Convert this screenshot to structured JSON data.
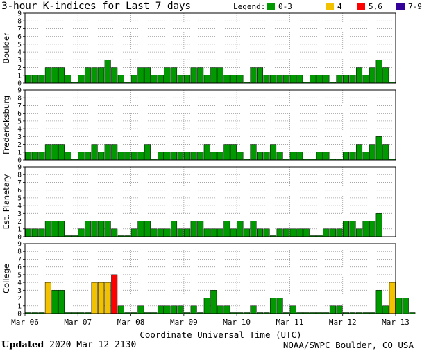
{
  "chart_data": {
    "type": "bar",
    "title": "3-hour K-indices for Last 7 days",
    "legend_label": "Legend:",
    "legend_placement": "top-right",
    "legend": [
      {
        "label": "0-3",
        "color": "#009900"
      },
      {
        "label": "4",
        "color": "#f2c200"
      },
      {
        "label": "5,6",
        "color": "#ff0000"
      },
      {
        "label": "7-9",
        "color": "#330099"
      }
    ],
    "ylim": [
      0,
      9
    ],
    "yticks": [
      "0",
      "1",
      "2",
      "3",
      "4",
      "5",
      "6",
      "7",
      "8",
      "9"
    ],
    "grid": true,
    "xlabel": "Coordinate Universal Time (UTC)",
    "xticks": [
      "Mar 06",
      "Mar 07",
      "Mar 08",
      "Mar 09",
      "Mar 10",
      "Mar 11",
      "Mar 12",
      "Mar 13"
    ],
    "intervals_per_day": 8,
    "panels": [
      {
        "name": "Boulder",
        "values": [
          1,
          1,
          1,
          2,
          2,
          2,
          1,
          0,
          1,
          2,
          2,
          2,
          3,
          2,
          1,
          0,
          1,
          2,
          2,
          1,
          1,
          2,
          2,
          1,
          1,
          2,
          2,
          1,
          2,
          2,
          1,
          1,
          1,
          0,
          2,
          2,
          1,
          1,
          1,
          1,
          1,
          1,
          0,
          1,
          1,
          1,
          0,
          1,
          1,
          1,
          2,
          1,
          2,
          3,
          2,
          0
        ]
      },
      {
        "name": "Fredericksburg",
        "values": [
          1,
          1,
          1,
          2,
          2,
          2,
          1,
          0,
          1,
          1,
          2,
          1,
          2,
          2,
          1,
          1,
          1,
          1,
          2,
          0,
          1,
          1,
          1,
          1,
          1,
          1,
          1,
          2,
          1,
          1,
          2,
          2,
          1,
          0,
          2,
          1,
          1,
          2,
          1,
          0,
          1,
          1,
          0,
          0,
          1,
          1,
          0,
          0,
          1,
          1,
          2,
          1,
          2,
          3,
          2,
          0
        ]
      },
      {
        "name": "Est. Planetary",
        "values": [
          1,
          1,
          1,
          2,
          2,
          2,
          0,
          0,
          1,
          2,
          2,
          2,
          2,
          1,
          0,
          0,
          1,
          2,
          2,
          1,
          1,
          1,
          2,
          1,
          1,
          2,
          2,
          1,
          1,
          1,
          2,
          1,
          2,
          1,
          2,
          1,
          1,
          0,
          1,
          1,
          1,
          1,
          1,
          0,
          0,
          1,
          1,
          1,
          2,
          2,
          1,
          2,
          2,
          3
        ]
      },
      {
        "name": "College",
        "values": [
          0,
          0,
          0,
          4,
          3,
          3,
          0,
          0,
          0,
          0,
          4,
          4,
          4,
          5,
          1,
          0,
          0,
          1,
          0,
          0,
          1,
          1,
          1,
          1,
          0,
          1,
          0,
          2,
          3,
          1,
          1,
          0,
          0,
          0,
          1,
          0,
          0,
          2,
          2,
          0,
          1,
          0,
          0,
          0,
          0,
          0,
          1,
          1,
          0,
          0,
          0,
          0,
          0,
          3,
          1,
          4,
          2,
          2,
          0
        ]
      }
    ]
  },
  "footer": {
    "updated_label": "Updated",
    "updated_value": "2020 Mar 12 2130",
    "source": "NOAA/SWPC Boulder, CO USA"
  }
}
